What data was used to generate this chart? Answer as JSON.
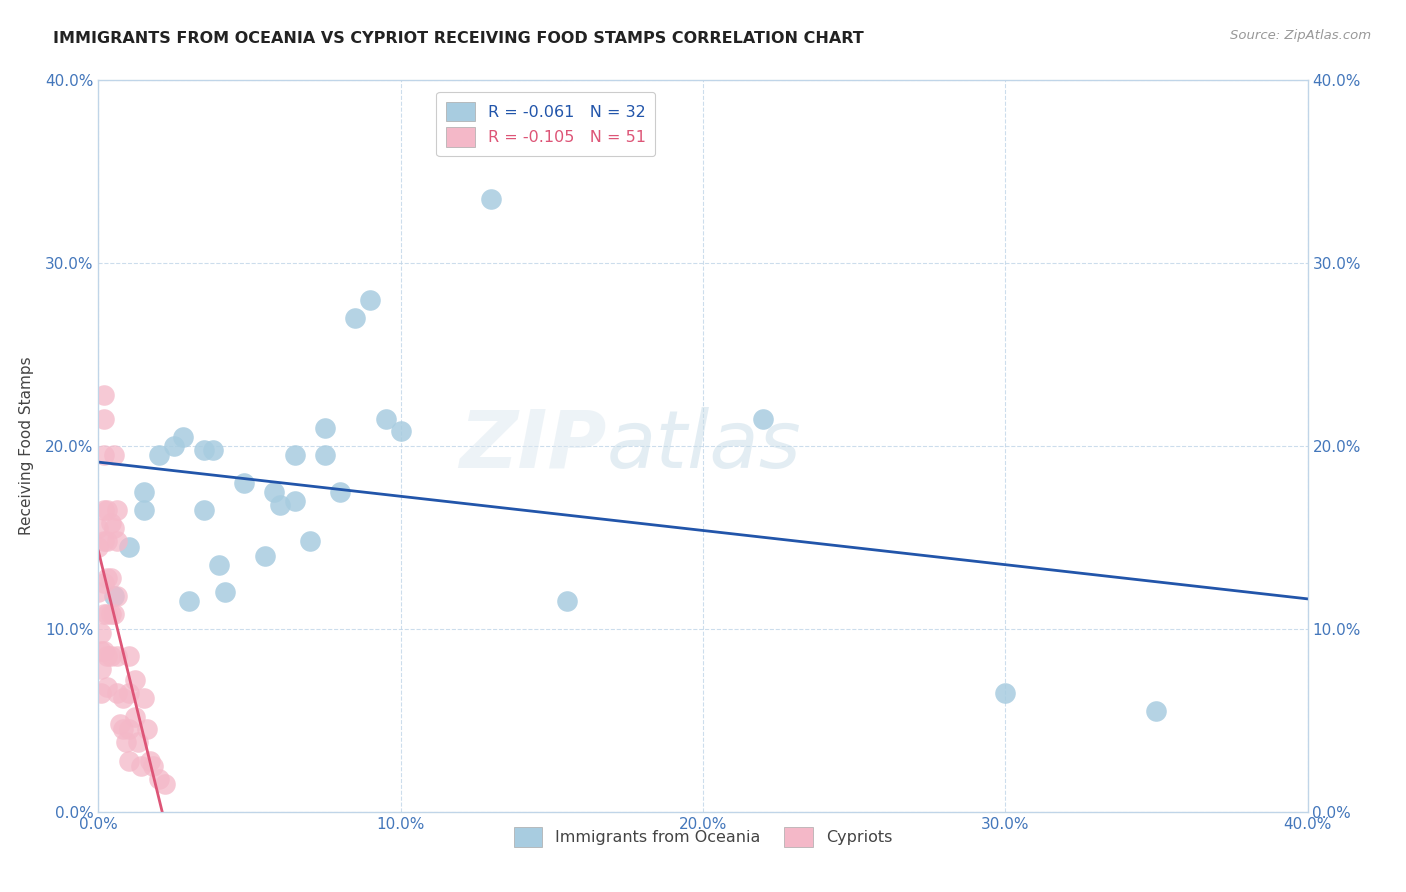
{
  "title": "IMMIGRANTS FROM OCEANIA VS CYPRIOT RECEIVING FOOD STAMPS CORRELATION CHART",
  "source": "Source: ZipAtlas.com",
  "ylabel": "Receiving Food Stamps",
  "xlim": [
    0.0,
    0.4
  ],
  "ylim": [
    0.0,
    0.4
  ],
  "legend_entry1": "R = -0.061   N = 32",
  "legend_entry2": "R = -0.105   N = 51",
  "legend_label1": "Immigrants from Oceania",
  "legend_label2": "Cypriots",
  "color_blue": "#a8cce0",
  "color_pink": "#f4b8c8",
  "trendline_blue": "#2255aa",
  "trendline_pink": "#dd5577",
  "watermark_zip": "ZIP",
  "watermark_atlas": "atlas",
  "blue_scatter_x": [
    0.005,
    0.01,
    0.015,
    0.015,
    0.02,
    0.025,
    0.028,
    0.03,
    0.035,
    0.035,
    0.038,
    0.04,
    0.042,
    0.048,
    0.055,
    0.058,
    0.06,
    0.065,
    0.065,
    0.07,
    0.075,
    0.075,
    0.08,
    0.085,
    0.09,
    0.095,
    0.1,
    0.13,
    0.155,
    0.22,
    0.3,
    0.35
  ],
  "blue_scatter_y": [
    0.118,
    0.145,
    0.165,
    0.175,
    0.195,
    0.2,
    0.205,
    0.115,
    0.165,
    0.198,
    0.198,
    0.135,
    0.12,
    0.18,
    0.14,
    0.175,
    0.168,
    0.195,
    0.17,
    0.148,
    0.195,
    0.21,
    0.175,
    0.27,
    0.28,
    0.215,
    0.208,
    0.335,
    0.115,
    0.215,
    0.065,
    0.055
  ],
  "pink_scatter_x": [
    0.0,
    0.0,
    0.0,
    0.001,
    0.001,
    0.001,
    0.001,
    0.002,
    0.002,
    0.002,
    0.002,
    0.002,
    0.002,
    0.002,
    0.002,
    0.003,
    0.003,
    0.003,
    0.003,
    0.003,
    0.003,
    0.004,
    0.004,
    0.004,
    0.004,
    0.005,
    0.005,
    0.005,
    0.006,
    0.006,
    0.006,
    0.006,
    0.006,
    0.007,
    0.008,
    0.008,
    0.009,
    0.01,
    0.01,
    0.01,
    0.01,
    0.012,
    0.012,
    0.013,
    0.014,
    0.015,
    0.016,
    0.017,
    0.018,
    0.02,
    0.022
  ],
  "pink_scatter_y": [
    0.155,
    0.145,
    0.12,
    0.098,
    0.088,
    0.078,
    0.065,
    0.228,
    0.215,
    0.195,
    0.165,
    0.148,
    0.125,
    0.108,
    0.088,
    0.165,
    0.148,
    0.128,
    0.108,
    0.085,
    0.068,
    0.158,
    0.128,
    0.108,
    0.085,
    0.195,
    0.155,
    0.108,
    0.165,
    0.148,
    0.118,
    0.085,
    0.065,
    0.048,
    0.062,
    0.045,
    0.038,
    0.085,
    0.065,
    0.045,
    0.028,
    0.072,
    0.052,
    0.038,
    0.025,
    0.062,
    0.045,
    0.028,
    0.025,
    0.018,
    0.015
  ]
}
